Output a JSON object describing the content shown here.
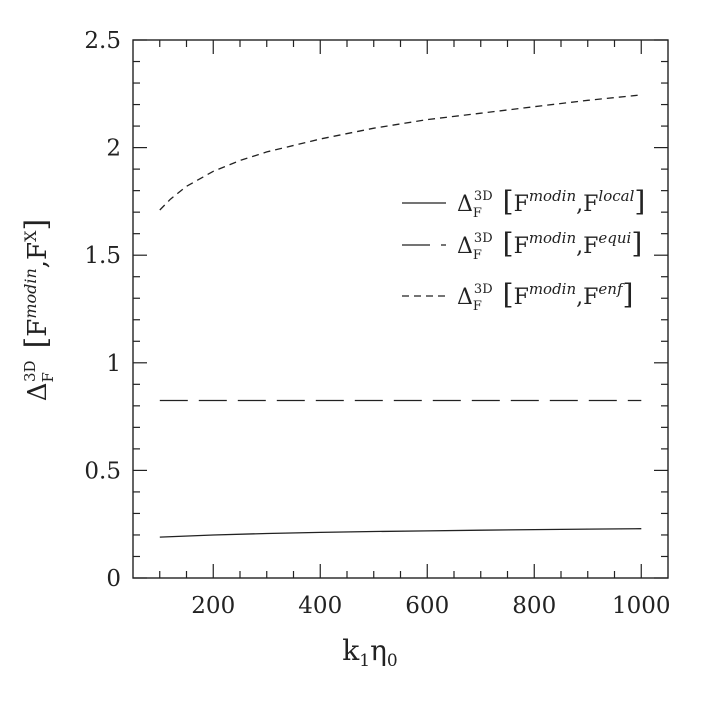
{
  "chart_data": {
    "type": "line",
    "xlabel": {
      "base": "k",
      "sub1": "1",
      "eta": "η",
      "sub2": "0"
    },
    "ylabel": {
      "delta": "Δ",
      "sup": "3D",
      "sub": "F",
      "f1": "F",
      "f1sup": "modin",
      "f2": "F",
      "f2sup": "X"
    },
    "xlim": [
      50,
      1050
    ],
    "ylim": [
      0,
      2.5
    ],
    "x_ticks": [
      200,
      400,
      600,
      800,
      1000
    ],
    "x_tick_labels": [
      "200",
      "400",
      "600",
      "800",
      "1000"
    ],
    "y_ticks": [
      0,
      0.5,
      1,
      1.5,
      2,
      2.5
    ],
    "y_tick_labels": [
      "0",
      "0.5",
      "1",
      "1.5",
      "2",
      "2.5"
    ],
    "grid": false,
    "legend_position": "right-middle",
    "series": [
      {
        "name": "local",
        "label_parts": {
          "delta": "Δ",
          "sup": "3D",
          "sub": "F",
          "f1": "F",
          "f1sup": "modin",
          "f2": "F",
          "f2sup": "local"
        },
        "dash": "solid",
        "x": [
          100,
          200,
          300,
          400,
          500,
          600,
          700,
          800,
          900,
          1000
        ],
        "y": [
          0.19,
          0.2,
          0.207,
          0.212,
          0.216,
          0.219,
          0.222,
          0.225,
          0.227,
          0.229
        ]
      },
      {
        "name": "equi",
        "label_parts": {
          "delta": "Δ",
          "sup": "3D",
          "sub": "F",
          "f1": "F",
          "f1sup": "modin",
          "f2": "F",
          "f2sup": "equi"
        },
        "dash": "long",
        "x": [
          100,
          200,
          300,
          400,
          500,
          600,
          700,
          800,
          900,
          1000
        ],
        "y": [
          0.825,
          0.825,
          0.825,
          0.825,
          0.825,
          0.825,
          0.825,
          0.825,
          0.825,
          0.825
        ]
      },
      {
        "name": "enf",
        "label_parts": {
          "delta": "Δ",
          "sup": "3D",
          "sub": "F",
          "f1": "F",
          "f1sup": "modin",
          "f2": "F",
          "f2sup": "enf"
        },
        "dash": "short",
        "x": [
          100,
          120,
          150,
          200,
          250,
          300,
          400,
          500,
          600,
          700,
          800,
          900,
          1000
        ],
        "y": [
          1.71,
          1.76,
          1.82,
          1.89,
          1.94,
          1.98,
          2.04,
          2.09,
          2.13,
          2.16,
          2.19,
          2.22,
          2.245
        ]
      }
    ]
  }
}
